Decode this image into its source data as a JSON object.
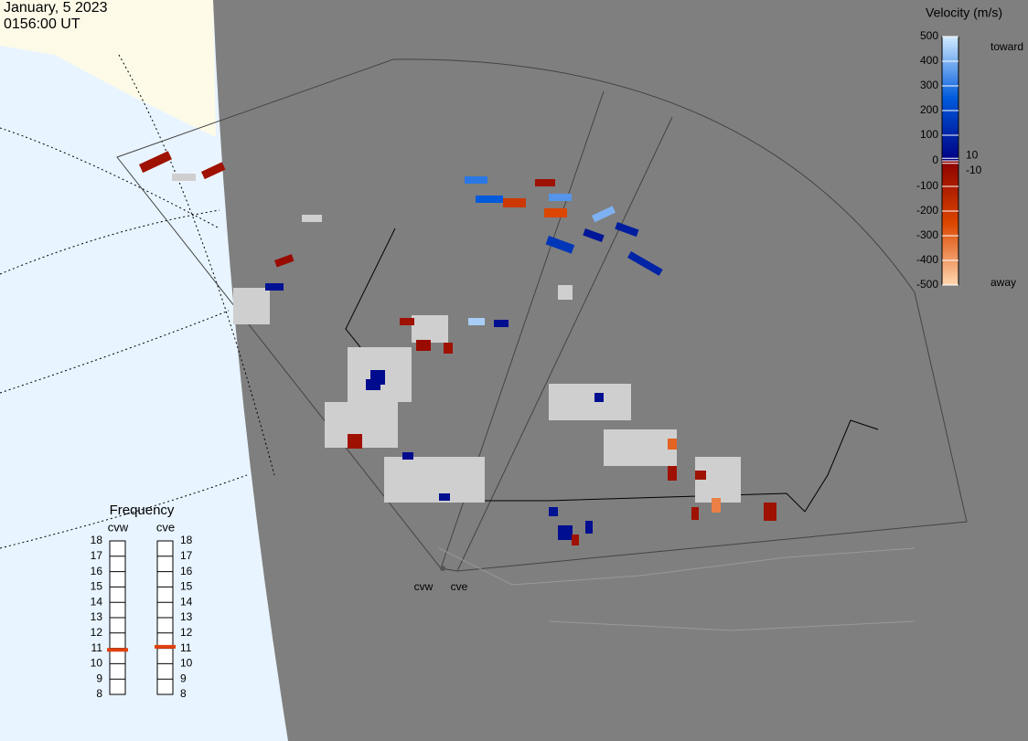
{
  "header": {
    "date": "January, 5 2023",
    "time": "0156:00 UT"
  },
  "colorbar": {
    "title": "Velocity (m/s)",
    "toward": "toward",
    "away": "away",
    "ticks": [
      500,
      400,
      300,
      200,
      100,
      10,
      0,
      -10,
      -100,
      -200,
      -300,
      -400,
      -500
    ],
    "lim": [
      -500,
      500
    ]
  },
  "frequency": {
    "title": "Frequency",
    "lim": [
      8,
      18
    ],
    "ticks": [
      18,
      17,
      16,
      15,
      14,
      13,
      12,
      11,
      10,
      9,
      8
    ],
    "radars": [
      {
        "name": "cvw",
        "value": 10.9
      },
      {
        "name": "cve",
        "value": 11.1
      }
    ]
  },
  "cells": [
    -60,
    -60,
    -40,
    300,
    250,
    350,
    400,
    -200,
    -250,
    -60,
    150,
    80,
    60,
    100,
    50,
    450,
    -60,
    -40,
    30,
    -60,
    40,
    -60,
    30,
    40,
    -300,
    -350,
    -60,
    40,
    -60,
    50,
    -60,
    30,
    40,
    -60,
    -60,
    40
  ]
}
